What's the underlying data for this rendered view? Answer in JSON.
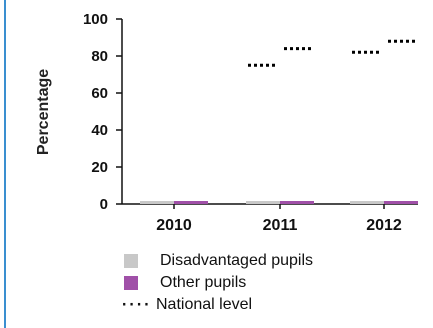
{
  "chart_data": {
    "type": "bar",
    "categories": [
      "2010",
      "2011",
      "2012"
    ],
    "series": [
      {
        "name": "Disadvantaged pupils",
        "values": [
          0,
          0,
          0
        ],
        "color": "#c8c8c8"
      },
      {
        "name": "Other pupils",
        "values": [
          0,
          0,
          0
        ],
        "color": "#a050a8"
      }
    ],
    "reference_series": {
      "name": "National level",
      "style": "dotted",
      "color": "#000000",
      "values": [
        {
          "category": "2011",
          "disadvantaged": 75,
          "other": 84
        },
        {
          "category": "2012",
          "disadvantaged": 82,
          "other": 88
        }
      ]
    },
    "title": "",
    "xlabel": "",
    "ylabel": "Percentage",
    "ylim": [
      0,
      100
    ],
    "yticks": [
      "0",
      "20",
      "40",
      "60",
      "80",
      "100"
    ],
    "grid": false,
    "legend_position": "bottom"
  },
  "colors": {
    "frame": "#3a8fd0",
    "axis": "#111111"
  },
  "legend": {
    "items": [
      {
        "label": "Disadvantaged pupils",
        "kind": "swatch",
        "color": "#c8c8c8"
      },
      {
        "label": "Other pupils",
        "kind": "swatch",
        "color": "#a050a8"
      },
      {
        "label": "National level",
        "kind": "dots",
        "symbol": "····"
      }
    ]
  }
}
